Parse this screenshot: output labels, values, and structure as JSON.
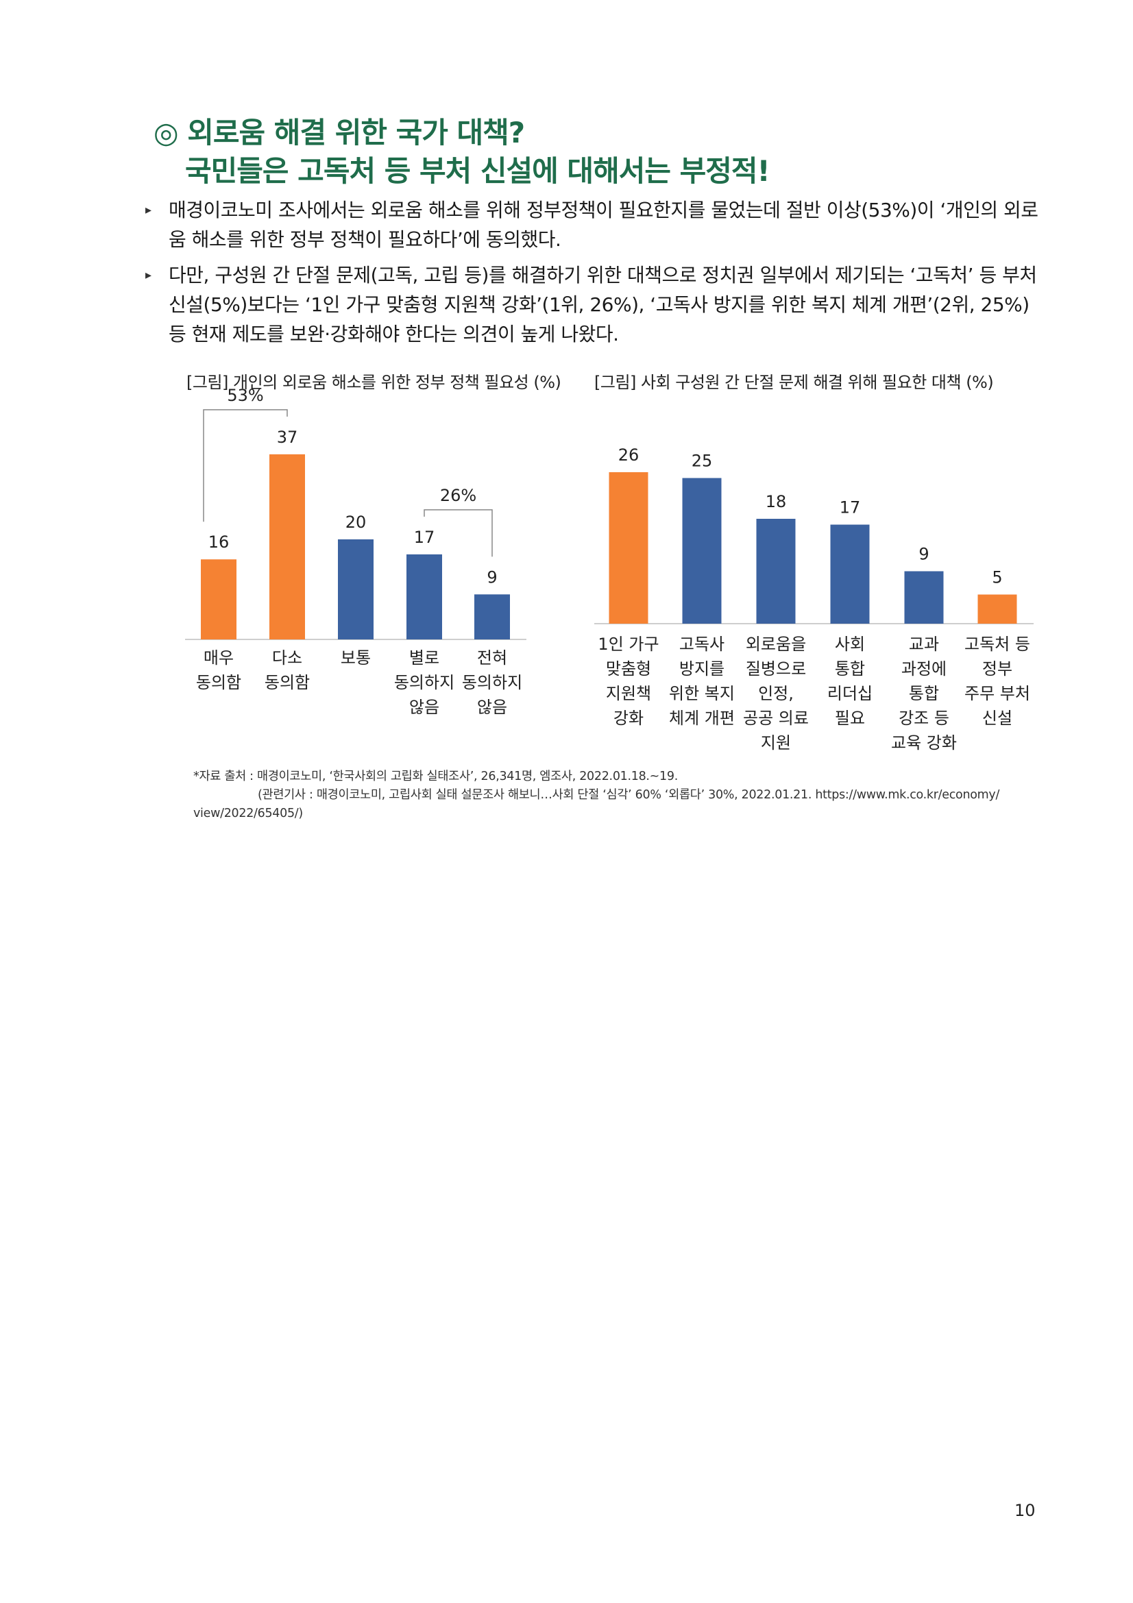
{
  "heading": {
    "line1": "◎ 외로움 해결 위한 국가 대책?",
    "line2": "국민들은 고독처 등 부처 신설에 대해서는 부정적!"
  },
  "bullets": [
    "매경이코노미 조사에서는 외로움 해소를 위해 정부정책이 필요한지를 물었는데 절반 이상(53%)이 ‘개인의 외로움 해소를 위한 정부 정책이 필요하다’에 동의했다.",
    "다만, 구성원 간 단절 문제(고독, 고립 등)를 해결하기 위한 대책으로 정치권 일부에서 제기되는 ‘고독처’ 등 부처 신설(5%)보다는 ‘1인 가구 맞춤형 지원책 강화’(1위, 26%), ‘고독사 방지를 위한 복지 체계 개편’(2위, 25%) 등 현재 제도를 보완·강화해야 한다는 의견이 높게 나왔다."
  ],
  "figures": {
    "caption1": "[그림] 개인의 외로움 해소를 위한 정부 정책 필요성 (%)",
    "caption2": "[그림] 사회 구성원 간 단절 문제 해결 위해 필요한 대책 (%)"
  },
  "chart_data": [
    {
      "type": "bar",
      "title": "[그림] 개인의 외로움 해소를 위한 정부 정책 필요성 (%)",
      "categories": [
        [
          "매우",
          "동의함"
        ],
        [
          "다소",
          "동의함"
        ],
        [
          "보통"
        ],
        [
          "별로",
          "동의하지",
          "않음"
        ],
        [
          "전혀",
          "동의하지",
          "않음"
        ]
      ],
      "values": [
        16,
        37,
        20,
        17,
        9
      ],
      "colors": [
        "#f58233",
        "#f58233",
        "#3b62a0",
        "#3b62a0",
        "#3b62a0"
      ],
      "ylim": [
        0,
        40
      ],
      "annotations": [
        {
          "text": "53%",
          "spans": [
            0,
            1
          ]
        },
        {
          "text": "26%",
          "spans": [
            3,
            4
          ]
        }
      ]
    },
    {
      "type": "bar",
      "title": "[그림] 사회 구성원 간 단절 문제 해결 위해 필요한 대책 (%)",
      "categories": [
        [
          "1인 가구",
          "맞춤형",
          "지원책",
          "강화"
        ],
        [
          "고독사",
          "방지를",
          "위한 복지",
          "체계 개편"
        ],
        [
          "외로움을",
          "질병으로",
          "인정,",
          "공공 의료",
          "지원"
        ],
        [
          "사회",
          "통합",
          "리더십",
          "필요"
        ],
        [
          "교과",
          "과정에",
          "통합",
          "강조 등",
          "교육 강화"
        ],
        [
          "고독처 등",
          "정부",
          "주무 부처",
          "신설"
        ]
      ],
      "values": [
        26,
        25,
        18,
        17,
        9,
        5
      ],
      "colors": [
        "#f58233",
        "#3b62a0",
        "#3b62a0",
        "#3b62a0",
        "#3b62a0",
        "#f58233"
      ],
      "ylim": [
        0,
        30
      ]
    }
  ],
  "source": {
    "line1": "*자료 출처 : 매경이코노미, ‘한국사회의 고립화 실태조사’, 26,341명, 엠조사, 2022.01.18.~19.",
    "line2": "(관련기사 : 매경이코노미, 고립사회 실태 설문조사 해보니…사회 단절 ‘심각’ 60% ‘외롭다’ 30%, 2022.01.21. https://www.mk.co.kr/economy/",
    "line3": "view/2022/65405/)"
  },
  "page_number": "10"
}
